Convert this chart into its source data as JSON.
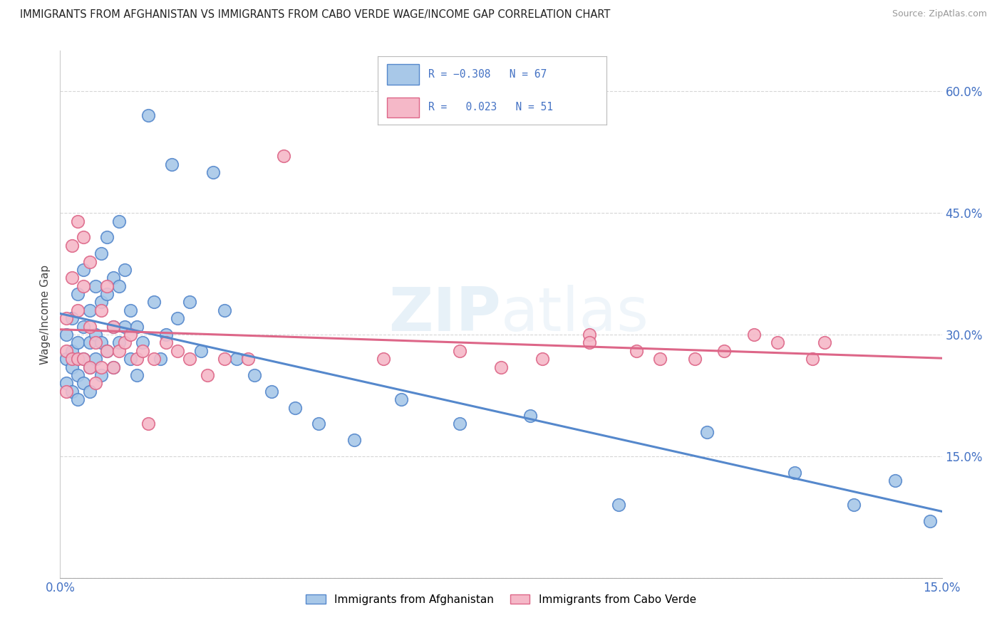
{
  "title": "IMMIGRANTS FROM AFGHANISTAN VS IMMIGRANTS FROM CABO VERDE WAGE/INCOME GAP CORRELATION CHART",
  "source": "Source: ZipAtlas.com",
  "ylabel": "Wage/Income Gap",
  "xlim": [
    0.0,
    0.15
  ],
  "ylim": [
    0.0,
    0.65
  ],
  "afghanistan_color": "#a8c8e8",
  "cabo_verde_color": "#f5b8c8",
  "afghanistan_edge": "#5588cc",
  "cabo_verde_edge": "#dd6688",
  "afghanistan_R": -0.308,
  "afghanistan_N": 67,
  "cabo_verde_R": 0.023,
  "cabo_verde_N": 51,
  "watermark_zip": "ZIP",
  "watermark_atlas": "atlas",
  "background_color": "#ffffff",
  "afghanistan_x": [
    0.001,
    0.001,
    0.001,
    0.002,
    0.002,
    0.002,
    0.002,
    0.003,
    0.003,
    0.003,
    0.003,
    0.004,
    0.004,
    0.004,
    0.004,
    0.005,
    0.005,
    0.005,
    0.005,
    0.006,
    0.006,
    0.006,
    0.007,
    0.007,
    0.007,
    0.007,
    0.008,
    0.008,
    0.008,
    0.009,
    0.009,
    0.009,
    0.01,
    0.01,
    0.01,
    0.011,
    0.011,
    0.012,
    0.012,
    0.013,
    0.013,
    0.014,
    0.015,
    0.016,
    0.017,
    0.018,
    0.019,
    0.02,
    0.022,
    0.024,
    0.026,
    0.028,
    0.03,
    0.033,
    0.036,
    0.04,
    0.044,
    0.05,
    0.058,
    0.068,
    0.08,
    0.095,
    0.11,
    0.125,
    0.135,
    0.142,
    0.148
  ],
  "afghanistan_y": [
    0.27,
    0.3,
    0.24,
    0.32,
    0.28,
    0.26,
    0.23,
    0.35,
    0.29,
    0.25,
    0.22,
    0.38,
    0.31,
    0.27,
    0.24,
    0.33,
    0.29,
    0.26,
    0.23,
    0.36,
    0.3,
    0.27,
    0.4,
    0.34,
    0.29,
    0.25,
    0.42,
    0.35,
    0.28,
    0.37,
    0.31,
    0.26,
    0.44,
    0.36,
    0.29,
    0.38,
    0.31,
    0.33,
    0.27,
    0.31,
    0.25,
    0.29,
    0.57,
    0.34,
    0.27,
    0.3,
    0.51,
    0.32,
    0.34,
    0.28,
    0.5,
    0.33,
    0.27,
    0.25,
    0.23,
    0.21,
    0.19,
    0.17,
    0.22,
    0.19,
    0.2,
    0.09,
    0.18,
    0.13,
    0.09,
    0.12,
    0.07
  ],
  "cabo_verde_x": [
    0.001,
    0.001,
    0.001,
    0.002,
    0.002,
    0.002,
    0.003,
    0.003,
    0.003,
    0.004,
    0.004,
    0.004,
    0.005,
    0.005,
    0.005,
    0.006,
    0.006,
    0.007,
    0.007,
    0.008,
    0.008,
    0.009,
    0.009,
    0.01,
    0.011,
    0.012,
    0.013,
    0.014,
    0.015,
    0.016,
    0.018,
    0.02,
    0.022,
    0.025,
    0.028,
    0.032,
    0.038,
    0.055,
    0.068,
    0.075,
    0.082,
    0.09,
    0.098,
    0.108,
    0.118,
    0.128,
    0.09,
    0.102,
    0.113,
    0.122,
    0.13
  ],
  "cabo_verde_y": [
    0.32,
    0.28,
    0.23,
    0.41,
    0.37,
    0.27,
    0.44,
    0.33,
    0.27,
    0.42,
    0.36,
    0.27,
    0.39,
    0.31,
    0.26,
    0.29,
    0.24,
    0.33,
    0.26,
    0.36,
    0.28,
    0.31,
    0.26,
    0.28,
    0.29,
    0.3,
    0.27,
    0.28,
    0.19,
    0.27,
    0.29,
    0.28,
    0.27,
    0.25,
    0.27,
    0.27,
    0.52,
    0.27,
    0.28,
    0.26,
    0.27,
    0.3,
    0.28,
    0.27,
    0.3,
    0.27,
    0.29,
    0.27,
    0.28,
    0.29,
    0.29
  ]
}
